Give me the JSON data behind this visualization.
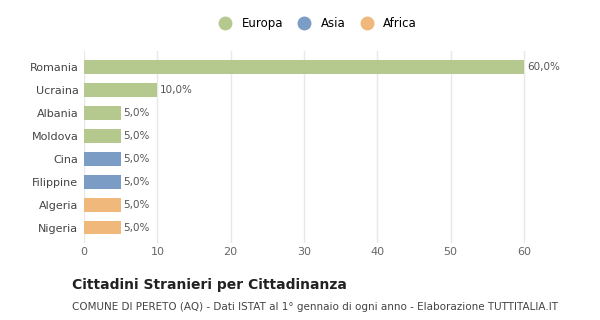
{
  "categories": [
    "Romania",
    "Ucraina",
    "Albania",
    "Moldova",
    "Cina",
    "Filippine",
    "Algeria",
    "Nigeria"
  ],
  "values": [
    60.0,
    10.0,
    5.0,
    5.0,
    5.0,
    5.0,
    5.0,
    5.0
  ],
  "colors": [
    "#b5c98e",
    "#b5c98e",
    "#b5c98e",
    "#b5c98e",
    "#7b9cc4",
    "#7b9cc4",
    "#f0b87a",
    "#f0b87a"
  ],
  "labels": [
    "60,0%",
    "10,0%",
    "5,0%",
    "5,0%",
    "5,0%",
    "5,0%",
    "5,0%",
    "5,0%"
  ],
  "xlim": [
    0,
    63
  ],
  "xticks": [
    0,
    10,
    20,
    30,
    40,
    50,
    60
  ],
  "legend_labels": [
    "Europa",
    "Asia",
    "Africa"
  ],
  "legend_colors": [
    "#b5c98e",
    "#7b9cc4",
    "#f0b87a"
  ],
  "title": "Cittadini Stranieri per Cittadinanza",
  "subtitle": "COMUNE DI PERETO (AQ) - Dati ISTAT al 1° gennaio di ogni anno - Elaborazione TUTTITALIA.IT",
  "bg_color": "#ffffff",
  "grid_color": "#e8e8e8",
  "title_fontsize": 10,
  "subtitle_fontsize": 7.5,
  "label_fontsize": 7.5,
  "tick_fontsize": 8,
  "legend_fontsize": 8.5
}
